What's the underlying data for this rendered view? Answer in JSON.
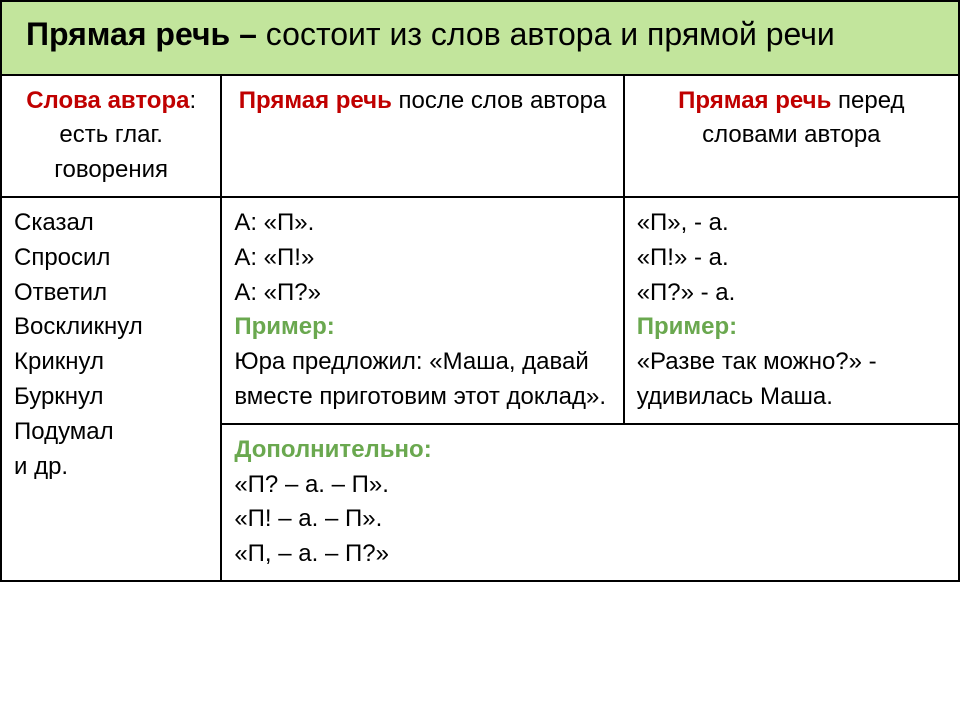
{
  "colors": {
    "header_bg": "#c2e59c",
    "red": "#c00000",
    "green": "#6aa84f",
    "border": "#000000",
    "text": "#000000",
    "background": "#ffffff"
  },
  "fonts": {
    "family": "Arial, sans-serif",
    "title_size_pt": 32,
    "body_size_pt": 24
  },
  "header": {
    "bold": "Прямая речь – ",
    "rest": "состоит из слов автора и прямой речи"
  },
  "columns": {
    "c1_label": "Слова автора",
    "c1_sub": ": есть глаг. говорения",
    "c2_bold": "Прямая речь",
    "c2_rest": " после слов автора",
    "c3_bold": "Прямая речь",
    "c3_rest": " перед словами автора"
  },
  "verbs": [
    "Сказал",
    "Спросил",
    "Ответил",
    "Воскликнул",
    "Крикнул",
    "Буркнул",
    "Подумал",
    "и др."
  ],
  "col2": {
    "schemas": [
      "А: «П».",
      "А: «П!»",
      "А: «П?»"
    ],
    "example_label": "Пример:",
    "example": "Юра предложил: «Маша, давай вместе приготовим этот доклад»."
  },
  "col3": {
    "schemas": [
      "«П», - а.",
      "«П!» - а.",
      "«П?» - а."
    ],
    "example_label": "Пример:",
    "example": "«Разве так можно?» - удивилась Маша."
  },
  "additional": {
    "label": "Дополнительно:",
    "schemas": [
      "«П? – а. – П».",
      "«П! – а. – П».",
      "«П, – а. – П?»"
    ]
  }
}
